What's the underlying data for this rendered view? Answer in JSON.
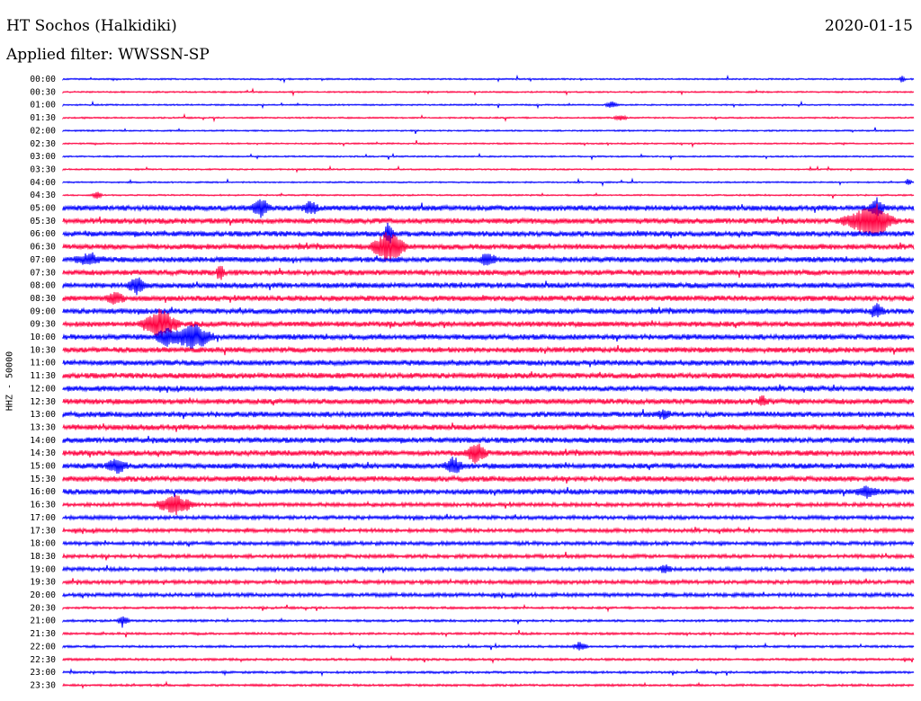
{
  "header": {
    "station": "HT Sochos (Halkidiki)",
    "date": "2020-01-15",
    "filter_label": "Applied filter: WWSSN-SP"
  },
  "chart_data": {
    "type": "line",
    "title": "HT Sochos (Halkidiki)",
    "ylabel": "HHZ - 50000",
    "row_labels": [
      "00:00",
      "00:30",
      "01:00",
      "01:30",
      "02:00",
      "02:30",
      "03:00",
      "03:30",
      "04:00",
      "04:30",
      "05:00",
      "05:30",
      "06:00",
      "06:30",
      "07:00",
      "07:30",
      "08:00",
      "08:30",
      "09:00",
      "09:30",
      "10:00",
      "10:30",
      "11:00",
      "11:30",
      "12:00",
      "12:30",
      "13:00",
      "13:30",
      "14:00",
      "14:30",
      "15:00",
      "15:30",
      "16:00",
      "16:30",
      "17:00",
      "17:30",
      "18:00",
      "18:30",
      "19:00",
      "19:30",
      "20:00",
      "20:30",
      "21:00",
      "21:30",
      "22:00",
      "22:30",
      "23:00",
      "23:30"
    ],
    "row_colors": [
      "#0000ff",
      "#ff0040"
    ],
    "grid": false
  }
}
